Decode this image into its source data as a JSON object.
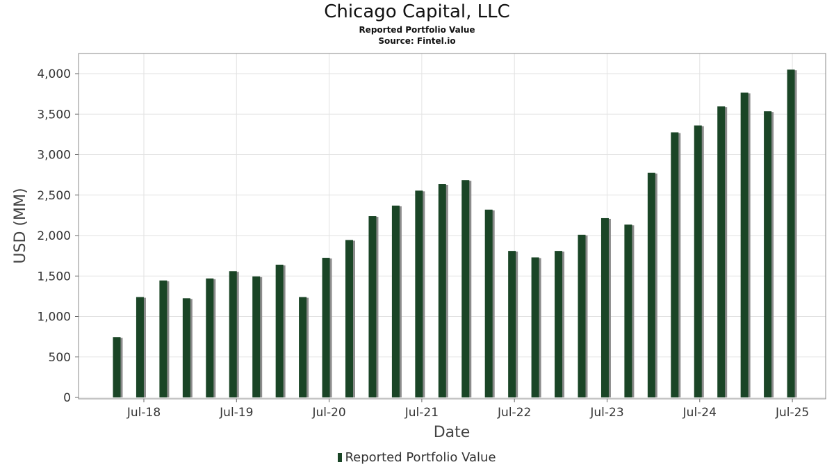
{
  "title": "Chicago Capital, LLC",
  "subtitle": "Reported Portfolio Value",
  "source": "Source: Fintel.io",
  "legend_label": "Reported Portfolio Value",
  "colors": {
    "bar": "#1a4526",
    "shadow": "#8c8c8c",
    "grid": "#e2e2e2",
    "frame": "#888888"
  },
  "chart_data": {
    "type": "bar",
    "title": "Chicago Capital, LLC",
    "subtitle": "Reported Portfolio Value",
    "xlabel": "Date",
    "ylabel": "USD (MM)",
    "ylim": [
      0,
      4250
    ],
    "yticks": [
      0,
      500,
      1000,
      1500,
      2000,
      2500,
      3000,
      3500,
      4000
    ],
    "ytick_labels": [
      "0",
      "500",
      "1,000",
      "1,500",
      "2,000",
      "2,500",
      "3,000",
      "3,500",
      "4,000"
    ],
    "xtick_labels": [
      "Jul-18",
      "Jul-19",
      "Jul-20",
      "Jul-21",
      "Jul-22",
      "Jul-23",
      "Jul-24",
      "Jul-25"
    ],
    "grid": true,
    "legend_position": "bottom",
    "categories": [
      "Mar-18",
      "Jun-18",
      "Sep-18",
      "Dec-18",
      "Mar-19",
      "Jun-19",
      "Sep-19",
      "Dec-19",
      "Mar-20",
      "Jun-20",
      "Sep-20",
      "Dec-20",
      "Mar-21",
      "Jun-21",
      "Sep-21",
      "Dec-21",
      "Mar-22",
      "Jun-22",
      "Sep-22",
      "Dec-22",
      "Mar-23",
      "Jun-23",
      "Sep-23",
      "Dec-23",
      "Mar-24",
      "Jun-24",
      "Sep-24",
      "Dec-24",
      "Mar-25",
      "Jun-25"
    ],
    "series": [
      {
        "name": "Reported Portfolio Value",
        "values": [
          745,
          1240,
          1445,
          1225,
          1470,
          1560,
          1495,
          1640,
          1240,
          1725,
          1945,
          2240,
          2370,
          2555,
          2635,
          2685,
          2320,
          1810,
          1730,
          1810,
          2010,
          2215,
          2135,
          2775,
          3275,
          3360,
          3595,
          3765,
          3535,
          4050
        ]
      }
    ]
  }
}
